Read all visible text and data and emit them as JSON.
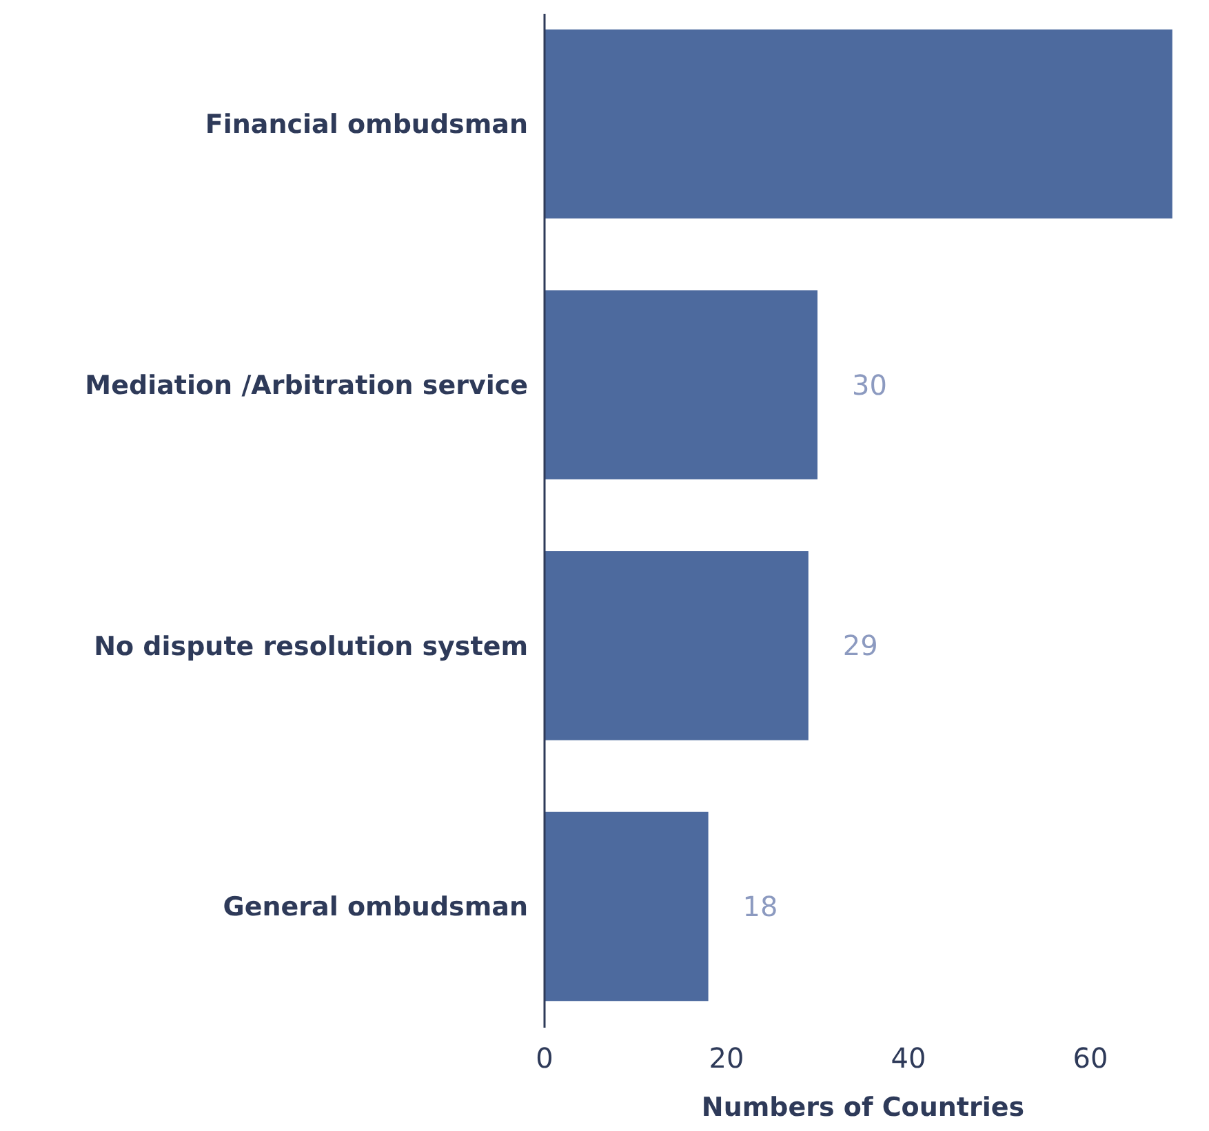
{
  "chart_data": {
    "type": "bar",
    "orientation": "horizontal",
    "xlabel": "Numbers of Countries",
    "categories": [
      "Financial ombudsman",
      "Mediation /Arbitration  service",
      "No dispute resolution system",
      "General ombudsman"
    ],
    "values": [
      69,
      30,
      29,
      18
    ],
    "value_labels": [
      null,
      "30",
      "29",
      "18"
    ],
    "color": "#4d6a9e",
    "xlim": [
      0,
      70
    ],
    "xticks": [
      0,
      20,
      40,
      60
    ],
    "grid": false
  }
}
